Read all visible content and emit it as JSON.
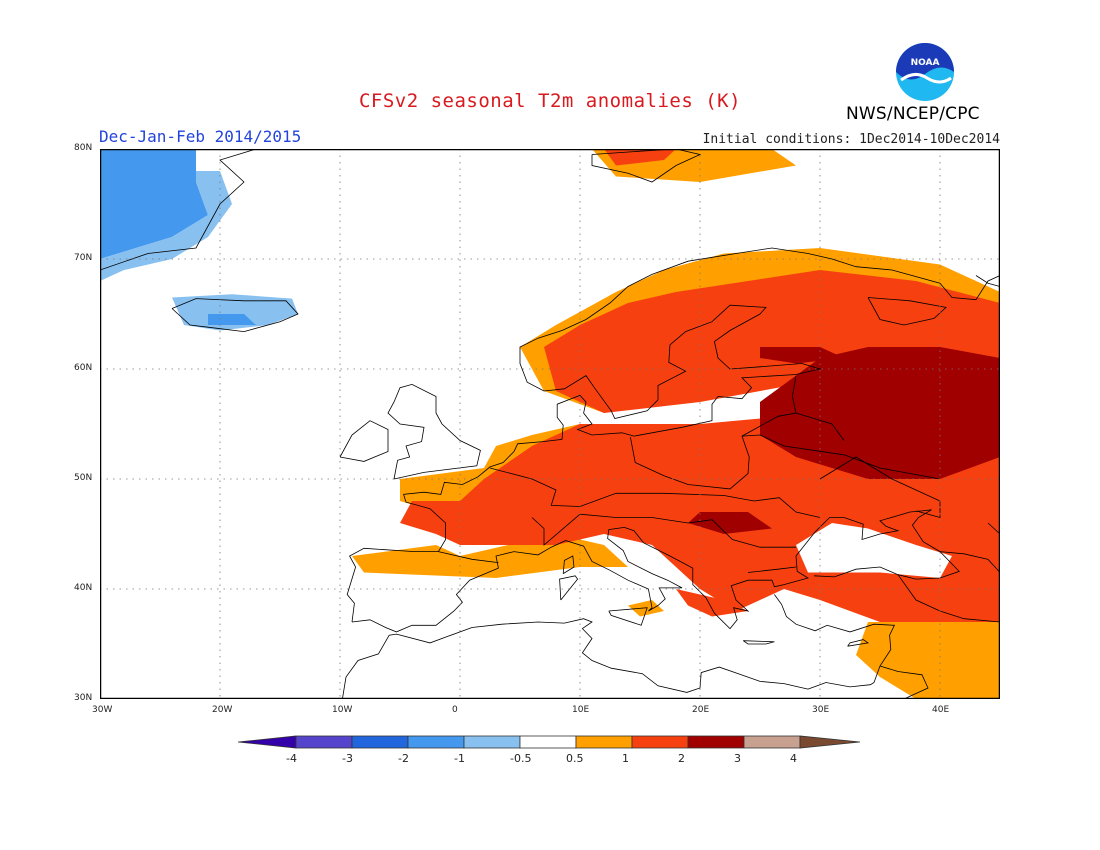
{
  "header": {
    "title": "CFSv2 seasonal T2m anomalies (K)",
    "season": "Dec-Jan-Feb 2014/2015",
    "initial_conditions": "Initial conditions: 1Dec2014-10Dec2014",
    "organization": "NWS/NCEP/CPC",
    "logo_text": "NOAA"
  },
  "map": {
    "lat_labels": [
      "80N",
      "70N",
      "60N",
      "50N",
      "40N",
      "30N"
    ],
    "lon_labels": [
      "30W",
      "20W",
      "10W",
      "0",
      "10E",
      "20E",
      "30E",
      "40E"
    ],
    "extent": {
      "lon": [
        -30,
        45
      ],
      "lat": [
        30,
        80
      ]
    }
  },
  "legend": {
    "labels": [
      "-4",
      "-3",
      "-2",
      "-1",
      "-0.5",
      "0.5",
      "1",
      "2",
      "3",
      "4"
    ],
    "colors": {
      "below_-4": "#3300aa",
      "-4_-3": "#5544cc",
      "-3_-2": "#2266dd",
      "-2_-1": "#4499ee",
      "-1_-0.5": "#88c0f0",
      "-0.5_0.5": "#ffffff",
      "0.5_1": "#ffa000",
      "1_2": "#f74010",
      "2_3": "#a00000",
      "3_4": "#c8a090",
      "above_4": "#7a4a30"
    }
  },
  "colors": {
    "title": "#d8191f",
    "season": "#2244dd",
    "logo_blue": "#1a3ab8",
    "logo_cyan": "#1fb8f0"
  }
}
